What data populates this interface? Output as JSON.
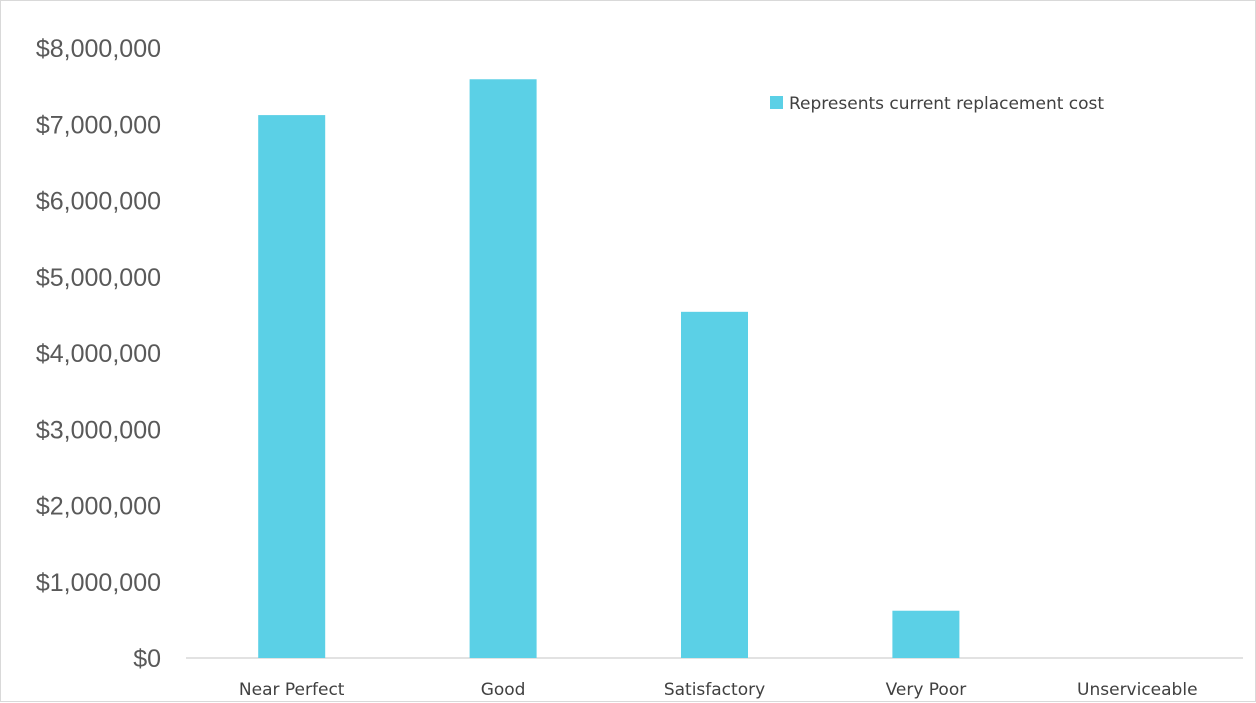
{
  "chart_data": {
    "type": "bar",
    "categories": [
      "Near Perfect",
      "Good",
      "Satisfactory",
      "Very Poor",
      "Unserviceable"
    ],
    "series": [
      {
        "name": "Represents current replacement cost",
        "values": [
          7120000,
          7590000,
          4540000,
          620000,
          0
        ]
      }
    ],
    "yticks": [
      "$0",
      "$1,000,000",
      "$2,000,000",
      "$3,000,000",
      "$4,000,000",
      "$5,000,000",
      "$6,000,000",
      "$7,000,000",
      "$8,000,000"
    ],
    "ylim": [
      0,
      8000000
    ],
    "grid": false,
    "legend": "top-right",
    "colors": {
      "bar": "#5bd0e6",
      "axis": "#d9d9d9"
    }
  }
}
